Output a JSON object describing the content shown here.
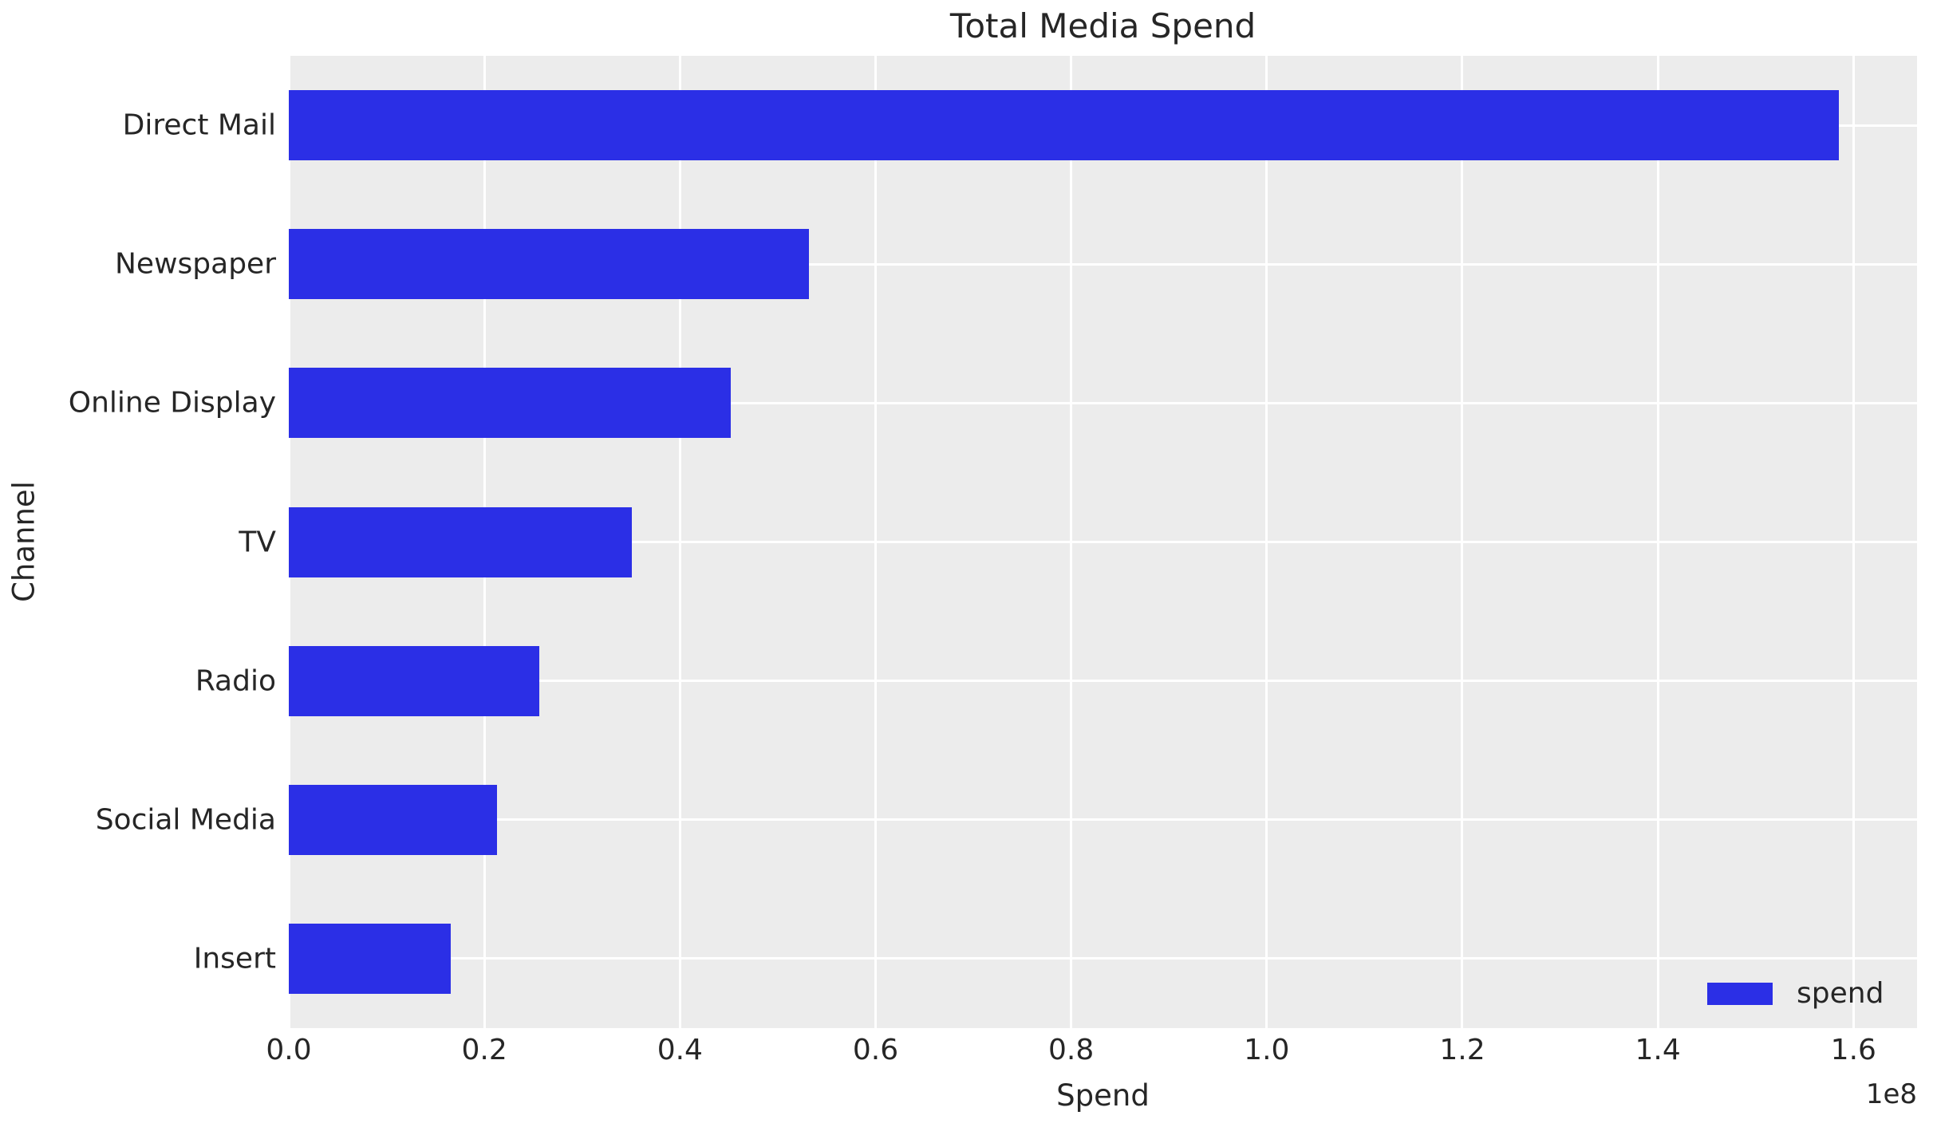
{
  "chart_data": {
    "type": "bar",
    "orientation": "horizontal",
    "title": "Total Media Spend",
    "xlabel": "Spend",
    "ylabel": "Channel",
    "x_offset_label": "1e8",
    "categories": [
      "Direct Mail",
      "Newspaper",
      "Online Display",
      "TV",
      "Radio",
      "Social Media",
      "Insert"
    ],
    "series": [
      {
        "name": "spend",
        "color": "#2b2fe6",
        "values": [
          158500000,
          53200000,
          45200000,
          35100000,
          25600000,
          21300000,
          16600000
        ]
      }
    ],
    "x_tick_values": [
      0,
      20000000,
      40000000,
      60000000,
      80000000,
      100000000,
      120000000,
      140000000,
      160000000
    ],
    "x_tick_labels": [
      "0.0",
      "0.2",
      "0.4",
      "0.6",
      "0.8",
      "1.0",
      "1.2",
      "1.4",
      "1.6"
    ],
    "xlim": [
      0,
      166500000
    ],
    "grid": true,
    "legend": {
      "position": "lower right",
      "label": "spend"
    },
    "colors": {
      "bar": "#2b2fe6",
      "plot_background": "#ececec",
      "grid": "#ffffff",
      "text": "#262626",
      "figure_background": "#ffffff"
    }
  }
}
